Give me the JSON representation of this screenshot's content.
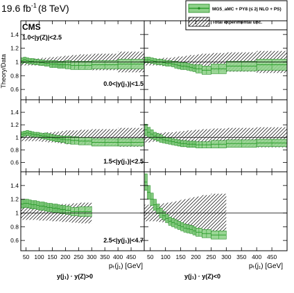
{
  "header": {
    "lumi_prefix": "19.6 fb",
    "lumi_exp": "-1",
    "lumi_suffix": "(8 TeV)"
  },
  "cms_label": "CMS",
  "y_axis_title": "Theory/Data",
  "legend": {
    "theory": "MG5_aMC + PY8 (≤ 2j NLO + PS)",
    "unc": "Total experimental unc."
  },
  "selection_label": "1.0<|y(Z)|<2.5",
  "row_labels": [
    "0.0<|y(j₁)|<1.5",
    "1.5<|y(j₁)|<2.5",
    "2.5<|y(j₁)|<4.7"
  ],
  "x_axis_title": "pₜ(j₁) [GeV]",
  "col_labels": [
    "y(j₁) · y(Z)>0",
    "y(j₁) · y(Z)<0"
  ],
  "x_tick_labels": [
    "50",
    "100",
    "150",
    "200",
    "250",
    "300",
    "350",
    "400",
    "450"
  ],
  "y_tick_labels": [
    "0.6",
    "0.8",
    "1",
    "1.2",
    "1.4"
  ],
  "colors": {
    "theory_fill": "#8fd18a",
    "theory_edge": "#1f8a1f",
    "theory_line": "#2ea02e"
  },
  "chart_data": {
    "type": "bar",
    "title": "",
    "xlabel": "pₜ(j₁) [GeV]",
    "ylabel": "Theory/Data",
    "xlim": [
      30,
      500
    ],
    "ylim": [
      0.45,
      1.6
    ],
    "bin_edges": [
      30,
      40,
      50,
      60,
      70,
      80,
      90,
      100,
      110,
      120,
      130,
      140,
      150,
      160,
      170,
      180,
      190,
      200,
      220,
      250,
      300,
      400,
      500
    ],
    "panels": [
      {
        "name": "0.0<|y(j1)|<1.5, y(j1)·y(Z)>0",
        "ratio": [
          1.02,
          1.03,
          1.02,
          1.01,
          1.01,
          1.0,
          1.0,
          0.99,
          0.99,
          0.98,
          0.98,
          0.97,
          0.97,
          0.97,
          0.96,
          0.96,
          0.96,
          0.96,
          0.95,
          0.95,
          0.96,
          0.97
        ],
        "theory_err": [
          0.04,
          0.04,
          0.04,
          0.04,
          0.04,
          0.04,
          0.04,
          0.04,
          0.04,
          0.04,
          0.04,
          0.05,
          0.05,
          0.05,
          0.05,
          0.05,
          0.05,
          0.06,
          0.06,
          0.06,
          0.06,
          0.07
        ],
        "exp_unc": [
          0.05,
          0.05,
          0.05,
          0.05,
          0.05,
          0.05,
          0.05,
          0.05,
          0.06,
          0.06,
          0.06,
          0.07,
          0.07,
          0.07,
          0.08,
          0.08,
          0.09,
          0.09,
          0.1,
          0.11,
          0.12,
          0.15
        ]
      },
      {
        "name": "0.0<|y(j1)|<1.5, y(j1)·y(Z)<0",
        "ratio": [
          1.03,
          1.03,
          1.02,
          1.01,
          1.0,
          1.0,
          0.99,
          0.98,
          0.98,
          0.97,
          0.96,
          0.95,
          0.94,
          0.94,
          0.93,
          0.92,
          0.91,
          0.9,
          0.88,
          0.9,
          0.94,
          0.96
        ],
        "theory_err": [
          0.04,
          0.04,
          0.04,
          0.04,
          0.04,
          0.04,
          0.04,
          0.04,
          0.04,
          0.04,
          0.05,
          0.05,
          0.05,
          0.05,
          0.05,
          0.05,
          0.05,
          0.06,
          0.06,
          0.07,
          0.07,
          0.08
        ],
        "exp_unc": [
          0.05,
          0.05,
          0.05,
          0.05,
          0.05,
          0.05,
          0.06,
          0.06,
          0.06,
          0.07,
          0.07,
          0.08,
          0.08,
          0.09,
          0.09,
          0.1,
          0.1,
          0.11,
          0.12,
          0.13,
          0.14,
          0.16
        ]
      },
      {
        "name": "1.5<|y(j1)|<2.5, y(j1)·y(Z)>0",
        "ratio": [
          1.05,
          1.06,
          1.07,
          1.06,
          1.05,
          1.04,
          1.04,
          1.03,
          1.02,
          1.02,
          1.01,
          1.0,
          0.99,
          0.98,
          0.98,
          0.97,
          0.97,
          0.96,
          0.95,
          0.94,
          0.92,
          0.92
        ],
        "theory_err": [
          0.04,
          0.04,
          0.04,
          0.04,
          0.04,
          0.04,
          0.04,
          0.04,
          0.04,
          0.05,
          0.05,
          0.05,
          0.05,
          0.05,
          0.05,
          0.05,
          0.05,
          0.06,
          0.06,
          0.06,
          0.06,
          0.06
        ],
        "exp_unc": [
          0.06,
          0.06,
          0.06,
          0.06,
          0.06,
          0.06,
          0.06,
          0.07,
          0.07,
          0.07,
          0.08,
          0.08,
          0.08,
          0.09,
          0.09,
          0.1,
          0.1,
          0.11,
          0.11,
          0.12,
          0.13,
          0.15
        ]
      },
      {
        "name": "1.5<|y(j1)|<2.5, y(j1)·y(Z)<0",
        "ratio": [
          1.12,
          1.08,
          1.05,
          1.02,
          1.0,
          0.98,
          0.96,
          0.95,
          0.94,
          0.93,
          0.92,
          0.91,
          0.9,
          0.9,
          0.89,
          0.89,
          0.89,
          0.88,
          0.88,
          0.89,
          0.9,
          0.91
        ],
        "theory_err": [
          0.09,
          0.08,
          0.07,
          0.06,
          0.06,
          0.06,
          0.05,
          0.05,
          0.05,
          0.05,
          0.05,
          0.05,
          0.05,
          0.05,
          0.05,
          0.05,
          0.05,
          0.05,
          0.05,
          0.06,
          0.06,
          0.06
        ],
        "exp_unc": [
          0.08,
          0.08,
          0.07,
          0.07,
          0.07,
          0.07,
          0.08,
          0.08,
          0.08,
          0.08,
          0.09,
          0.09,
          0.1,
          0.1,
          0.11,
          0.11,
          0.12,
          0.12,
          0.13,
          0.14,
          0.15,
          0.16
        ]
      },
      {
        "name": "2.5<|y(j1)|<4.7, y(j1)·y(Z)>0",
        "ratio": [
          1.13,
          1.14,
          1.14,
          1.13,
          1.12,
          1.12,
          1.11,
          1.1,
          1.1,
          1.09,
          1.08,
          1.08,
          1.07,
          1.07,
          1.06,
          1.05,
          1.05,
          1.04,
          1.02,
          1.02
        ],
        "theory_err": [
          0.06,
          0.06,
          0.06,
          0.06,
          0.06,
          0.06,
          0.06,
          0.06,
          0.06,
          0.06,
          0.06,
          0.06,
          0.06,
          0.06,
          0.06,
          0.06,
          0.06,
          0.06,
          0.06,
          0.07
        ],
        "exp_unc": [
          0.1,
          0.1,
          0.1,
          0.1,
          0.1,
          0.1,
          0.1,
          0.11,
          0.11,
          0.11,
          0.11,
          0.12,
          0.12,
          0.12,
          0.12,
          0.13,
          0.13,
          0.13,
          0.14,
          0.15
        ]
      },
      {
        "name": "2.5<|y(j1)|<4.7, y(j1)·y(Z)<0",
        "ratio": [
          1.45,
          1.3,
          1.2,
          1.12,
          1.06,
          1.0,
          0.96,
          0.92,
          0.88,
          0.86,
          0.84,
          0.82,
          0.8,
          0.78,
          0.77,
          0.76,
          0.74,
          0.72,
          0.7,
          0.68
        ],
        "theory_err": [
          0.12,
          0.1,
          0.09,
          0.08,
          0.07,
          0.07,
          0.06,
          0.06,
          0.06,
          0.06,
          0.06,
          0.06,
          0.06,
          0.06,
          0.06,
          0.06,
          0.06,
          0.06,
          0.06,
          0.06
        ],
        "exp_unc": [
          0.12,
          0.12,
          0.12,
          0.12,
          0.13,
          0.13,
          0.14,
          0.15,
          0.15,
          0.16,
          0.17,
          0.18,
          0.19,
          0.2,
          0.21,
          0.22,
          0.23,
          0.24,
          0.26,
          0.28
        ]
      }
    ]
  }
}
